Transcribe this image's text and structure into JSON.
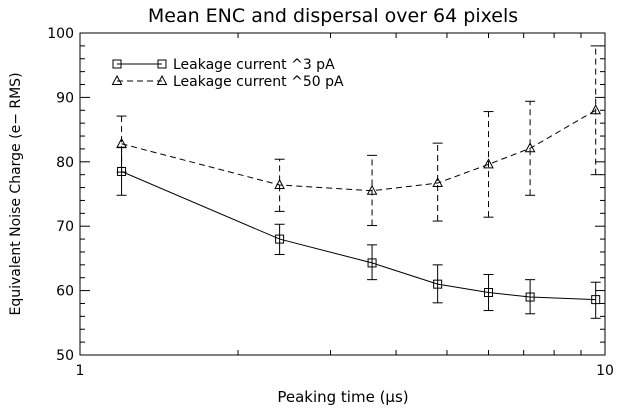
{
  "chart_data": {
    "type": "line",
    "title": "Mean ENC and dispersal over 64 pixels",
    "xlabel": "Peaking time (μs)",
    "ylabel": "Equivalent Noise Charge (e− RMS)",
    "x_scale": "log",
    "xlim": [
      1,
      10
    ],
    "ylim": [
      50,
      100
    ],
    "x_ticks": [
      1,
      10
    ],
    "x_tick_labels": [
      "1",
      "10"
    ],
    "y_ticks": [
      50,
      60,
      70,
      80,
      90,
      100
    ],
    "y_tick_labels": [
      "50",
      "60",
      "70",
      "80",
      "90",
      "100"
    ],
    "grid": false,
    "legend_position": "top-left",
    "series": [
      {
        "name": "Leakage current ^3 pA",
        "marker": "square",
        "line": "solid",
        "x": [
          1.2,
          2.4,
          3.6,
          4.8,
          6.0,
          7.2,
          9.6
        ],
        "y": [
          78.5,
          68.0,
          64.3,
          61.0,
          59.7,
          59.0,
          58.6
        ],
        "err_low": [
          74.8,
          65.6,
          61.7,
          58.1,
          56.9,
          56.4,
          55.7
        ],
        "err_high": [
          82.2,
          70.3,
          67.1,
          64.0,
          62.5,
          61.7,
          61.3
        ]
      },
      {
        "name": "Leakage current ^50 pA",
        "marker": "triangle",
        "line": "dashed",
        "x": [
          1.2,
          2.4,
          3.6,
          4.8,
          6.0,
          7.2,
          9.6
        ],
        "y": [
          82.8,
          76.4,
          75.5,
          76.7,
          79.6,
          82.1,
          88.0
        ],
        "err_low": [
          78.4,
          72.3,
          70.1,
          70.8,
          71.4,
          74.8,
          78.0
        ],
        "err_high": [
          87.1,
          80.4,
          81.0,
          82.9,
          87.8,
          89.4,
          98.0
        ]
      }
    ]
  }
}
